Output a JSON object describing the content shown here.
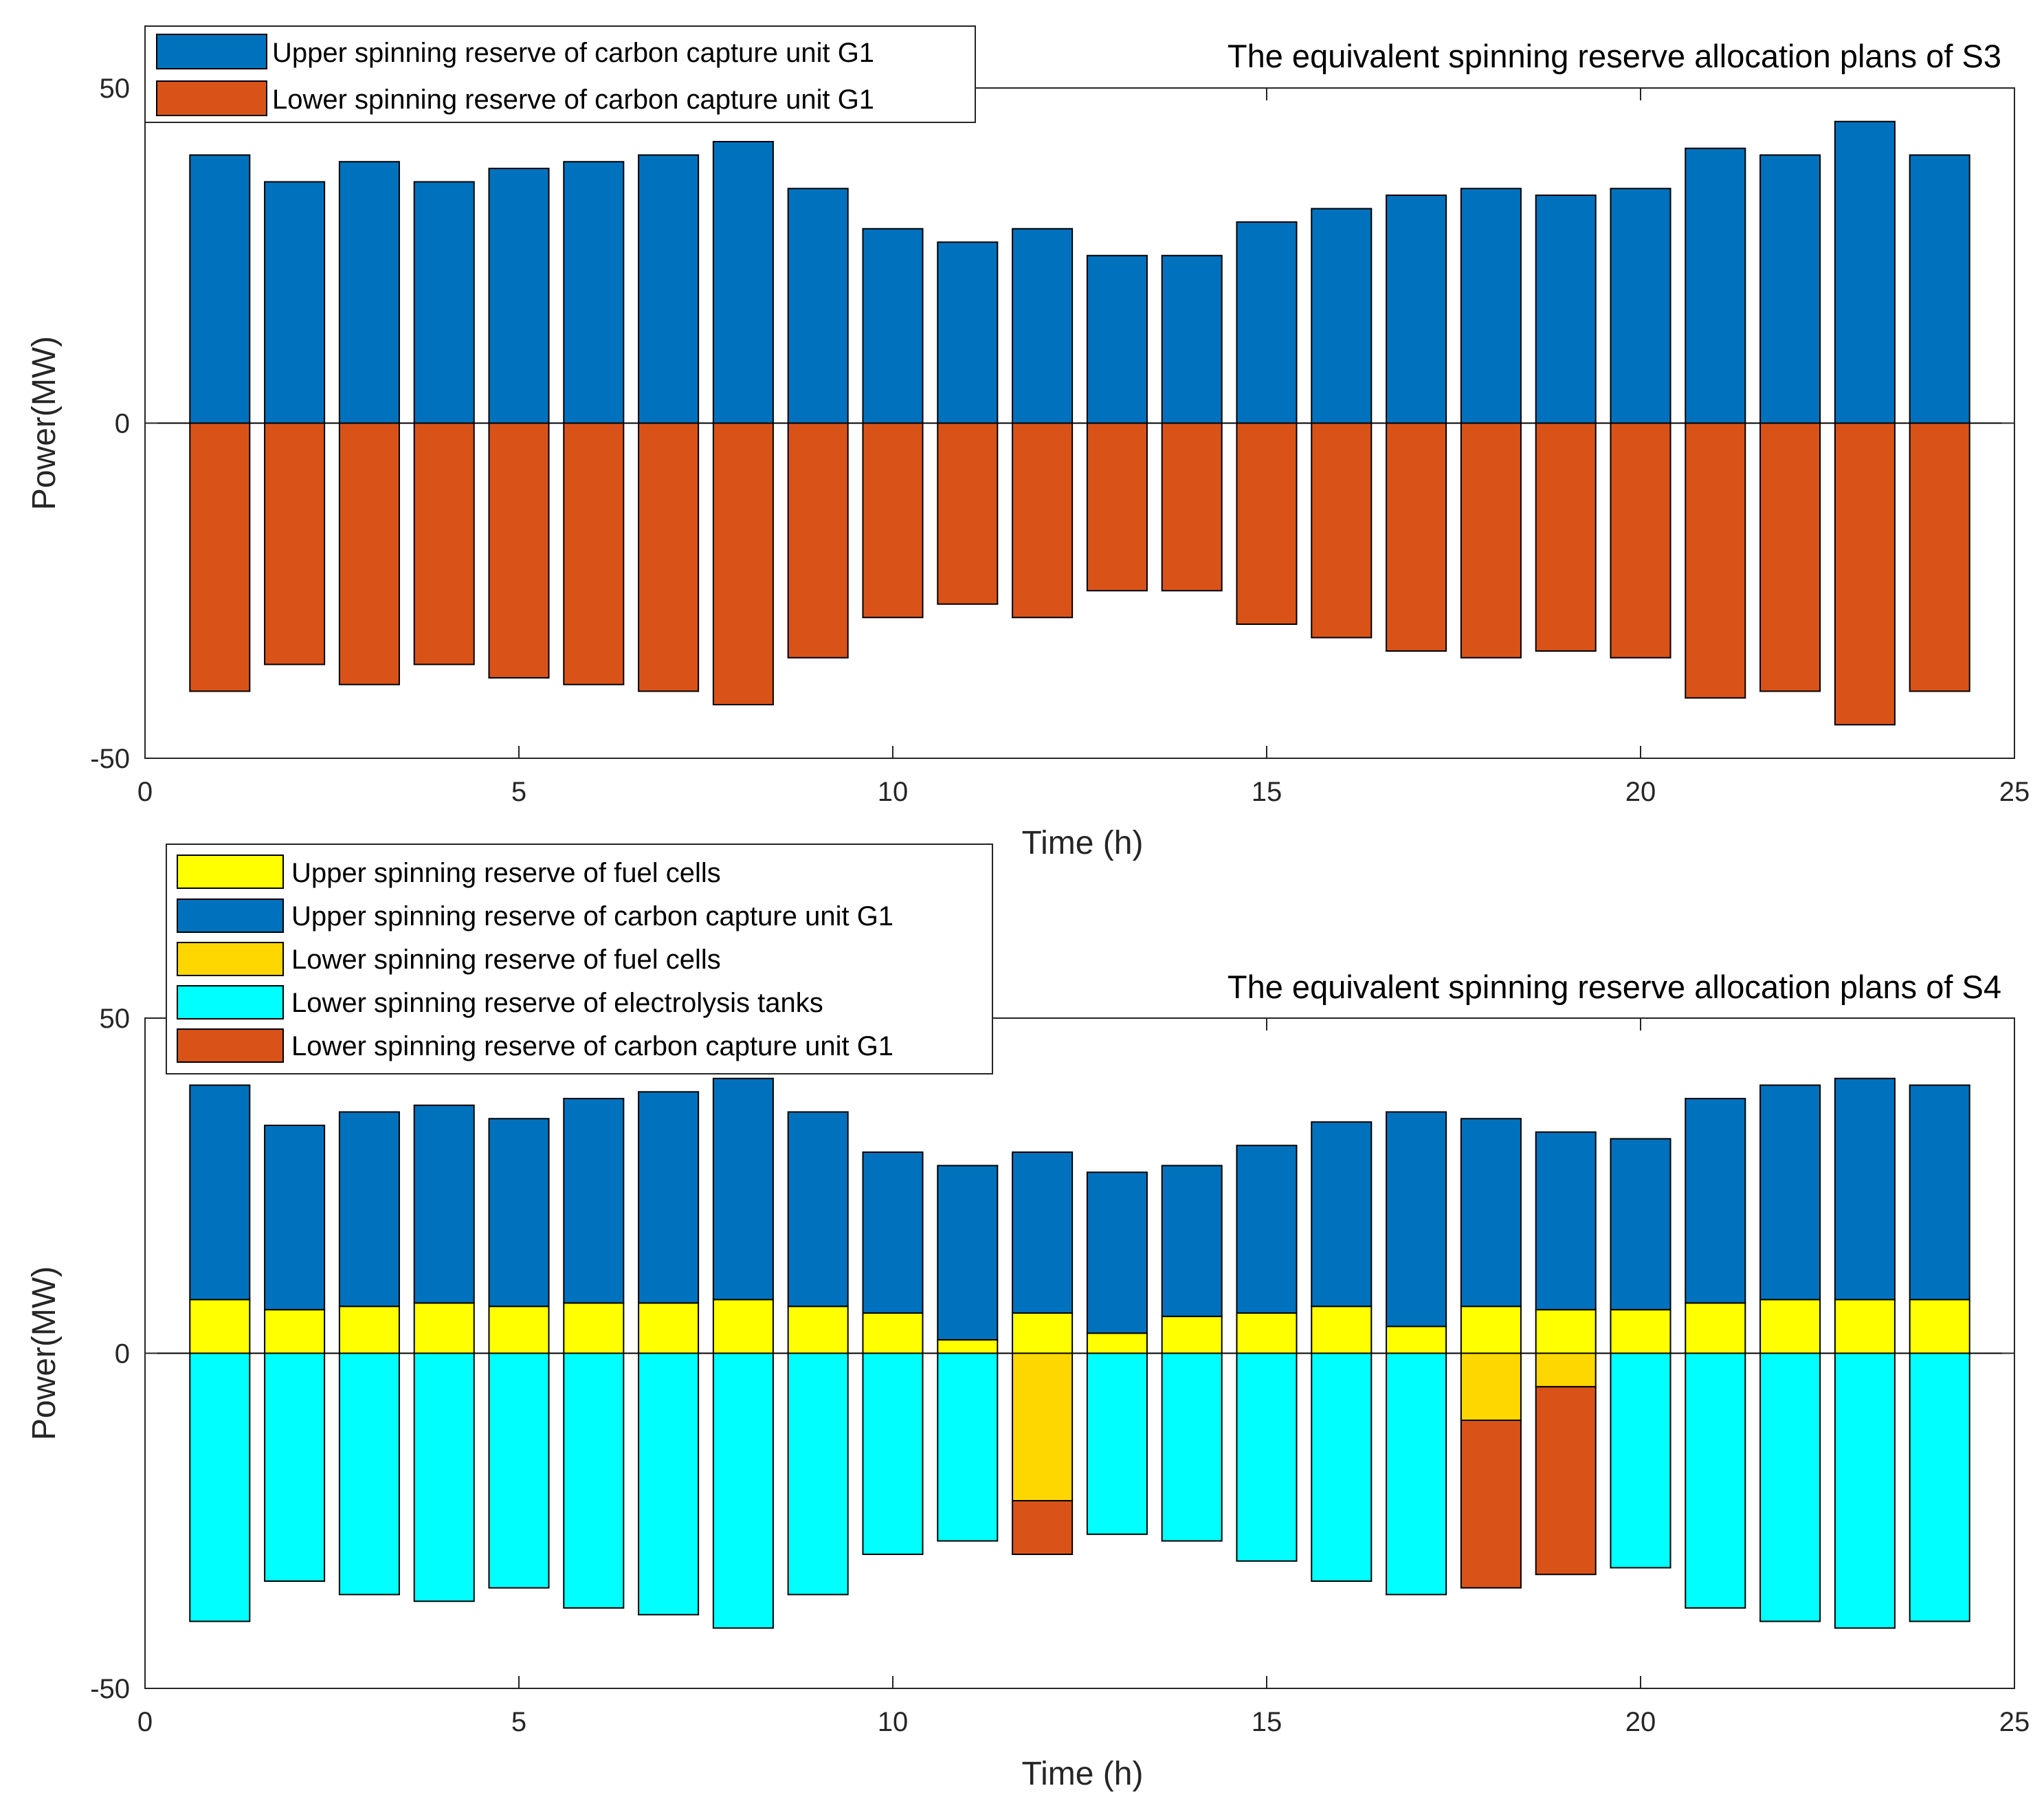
{
  "colors": {
    "blue": "#0072BD",
    "orange": "#D95319",
    "yellow": "#FFFF00",
    "gold": "#FFD700",
    "cyan": "#00FFFF",
    "axis": "#262626"
  },
  "chart_data": [
    {
      "type": "bar",
      "stacked": true,
      "title": "The equivalent spinning reserve allocation plans of S3",
      "xlabel": "Time (h)",
      "ylabel": "Power(MW)",
      "xlim": [
        0,
        25
      ],
      "ylim": [
        -50,
        50
      ],
      "xticks": [
        0,
        5,
        10,
        15,
        20,
        25
      ],
      "yticks": [
        -50,
        0,
        50
      ],
      "legend_position": "top-left",
      "categories": [
        1,
        2,
        3,
        4,
        5,
        6,
        7,
        8,
        9,
        10,
        11,
        12,
        13,
        14,
        15,
        16,
        17,
        18,
        19,
        20,
        21,
        22,
        23,
        24
      ],
      "series": [
        {
          "name": "Upper spinning reserve of carbon capture unit G1",
          "color": "#0072BD",
          "values": [
            40,
            36,
            39,
            36,
            38,
            39,
            40,
            42,
            35,
            29,
            27,
            29,
            25,
            25,
            30,
            32,
            34,
            35,
            34,
            35,
            41,
            40,
            45,
            40
          ]
        },
        {
          "name": "Lower spinning reserve of carbon capture unit G1",
          "color": "#D95319",
          "values": [
            -40,
            -36,
            -39,
            -36,
            -38,
            -39,
            -40,
            -42,
            -35,
            -29,
            -27,
            -29,
            -25,
            -25,
            -30,
            -32,
            -34,
            -35,
            -34,
            -35,
            -41,
            -40,
            -45,
            -40
          ]
        }
      ]
    },
    {
      "type": "bar",
      "stacked": true,
      "title": "The equivalent spinning reserve allocation plans of S4",
      "xlabel": "Time (h)",
      "ylabel": "Power(MW)",
      "xlim": [
        0,
        25
      ],
      "ylim": [
        -50,
        50
      ],
      "xticks": [
        0,
        5,
        10,
        15,
        20,
        25
      ],
      "yticks": [
        -50,
        0,
        50
      ],
      "legend_position": "top-left",
      "categories": [
        1,
        2,
        3,
        4,
        5,
        6,
        7,
        8,
        9,
        10,
        11,
        12,
        13,
        14,
        15,
        16,
        17,
        18,
        19,
        20,
        21,
        22,
        23,
        24
      ],
      "series": [
        {
          "name": "Upper spinning reserve of fuel cells",
          "color": "#FFFF00",
          "stack": "up",
          "values": [
            8,
            6.5,
            7,
            7.5,
            7,
            7.5,
            7.5,
            8,
            7,
            6,
            2,
            6,
            3,
            5.5,
            6,
            7,
            4,
            7,
            6.5,
            6.5,
            7.5,
            8,
            8,
            8
          ]
        },
        {
          "name": "Upper spinning reserve of carbon capture unit G1",
          "color": "#0072BD",
          "stack": "up",
          "values": [
            32,
            27.5,
            29,
            29.5,
            28,
            30.5,
            31.5,
            33,
            29,
            24,
            26,
            24,
            24,
            22.5,
            25,
            27.5,
            32,
            28,
            26.5,
            25.5,
            30.5,
            32,
            33,
            32
          ]
        },
        {
          "name": "Lower spinning reserve of fuel cells",
          "color": "#FFD700",
          "stack": "down",
          "values": [
            0,
            0,
            0,
            0,
            0,
            0,
            0,
            0,
            0,
            0,
            0,
            -22,
            0,
            0,
            0,
            0,
            0,
            -10,
            -5,
            0,
            0,
            0,
            0,
            0
          ]
        },
        {
          "name": "Lower spinning reserve of electrolysis tanks",
          "color": "#00FFFF",
          "stack": "down",
          "values": [
            -40,
            -34,
            -36,
            -37,
            -35,
            -38,
            -39,
            -41,
            -36,
            -30,
            -28,
            0,
            -27,
            -28,
            -31,
            -34,
            -36,
            0,
            0,
            -32,
            -38,
            -40,
            -41,
            -40
          ]
        },
        {
          "name": "Lower spinning reserve of carbon capture unit G1",
          "color": "#D95319",
          "stack": "down",
          "values": [
            0,
            0,
            0,
            0,
            0,
            0,
            0,
            0,
            0,
            0,
            0,
            -8,
            0,
            0,
            0,
            0,
            0,
            -25,
            -28,
            0,
            0,
            0,
            0,
            0
          ]
        }
      ]
    }
  ]
}
